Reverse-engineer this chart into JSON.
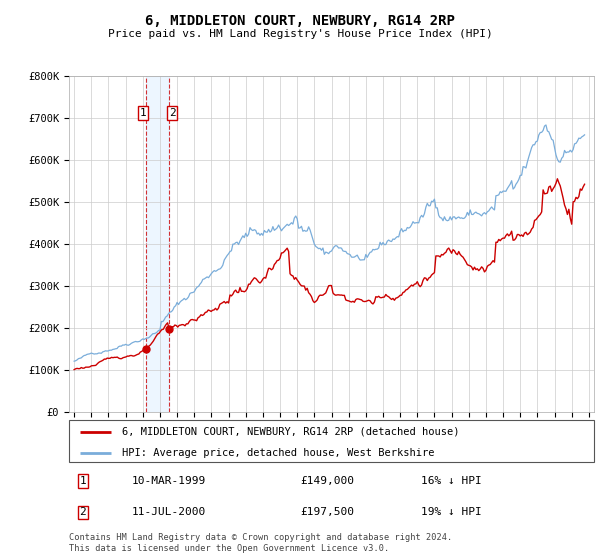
{
  "title": "6, MIDDLETON COURT, NEWBURY, RG14 2RP",
  "subtitle": "Price paid vs. HM Land Registry's House Price Index (HPI)",
  "property_label": "6, MIDDLETON COURT, NEWBURY, RG14 2RP (detached house)",
  "hpi_label": "HPI: Average price, detached house, West Berkshire",
  "transaction1_date": "10-MAR-1999",
  "transaction1_price": "£149,000",
  "transaction1_hpi": "16% ↓ HPI",
  "transaction2_date": "11-JUL-2000",
  "transaction2_price": "£197,500",
  "transaction2_hpi": "19% ↓ HPI",
  "footer": "Contains HM Land Registry data © Crown copyright and database right 2024.\nThis data is licensed under the Open Government Licence v3.0.",
  "property_color": "#cc0000",
  "hpi_color": "#7aadda",
  "transaction1_x": 1999.19,
  "transaction1_y": 149000,
  "transaction2_x": 2000.53,
  "transaction2_y": 197500,
  "ylim_min": 0,
  "ylim_max": 800000,
  "xlim_min": 1994.7,
  "xlim_max": 2025.3,
  "yticks": [
    0,
    100000,
    200000,
    300000,
    400000,
    500000,
    600000,
    700000,
    800000
  ],
  "ytick_labels": [
    "£0",
    "£100K",
    "£200K",
    "£300K",
    "£400K",
    "£500K",
    "£600K",
    "£700K",
    "£800K"
  ],
  "xticks": [
    1995,
    1996,
    1997,
    1998,
    1999,
    2000,
    2001,
    2002,
    2003,
    2004,
    2005,
    2006,
    2007,
    2008,
    2009,
    2010,
    2011,
    2012,
    2013,
    2014,
    2015,
    2016,
    2017,
    2018,
    2019,
    2020,
    2021,
    2022,
    2023,
    2024,
    2025
  ],
  "vline1_x": 1999.19,
  "vline2_x": 2000.53,
  "marker1_x": 1999.19,
  "marker1_y": 149000,
  "marker2_x": 2000.53,
  "marker2_y": 197500
}
